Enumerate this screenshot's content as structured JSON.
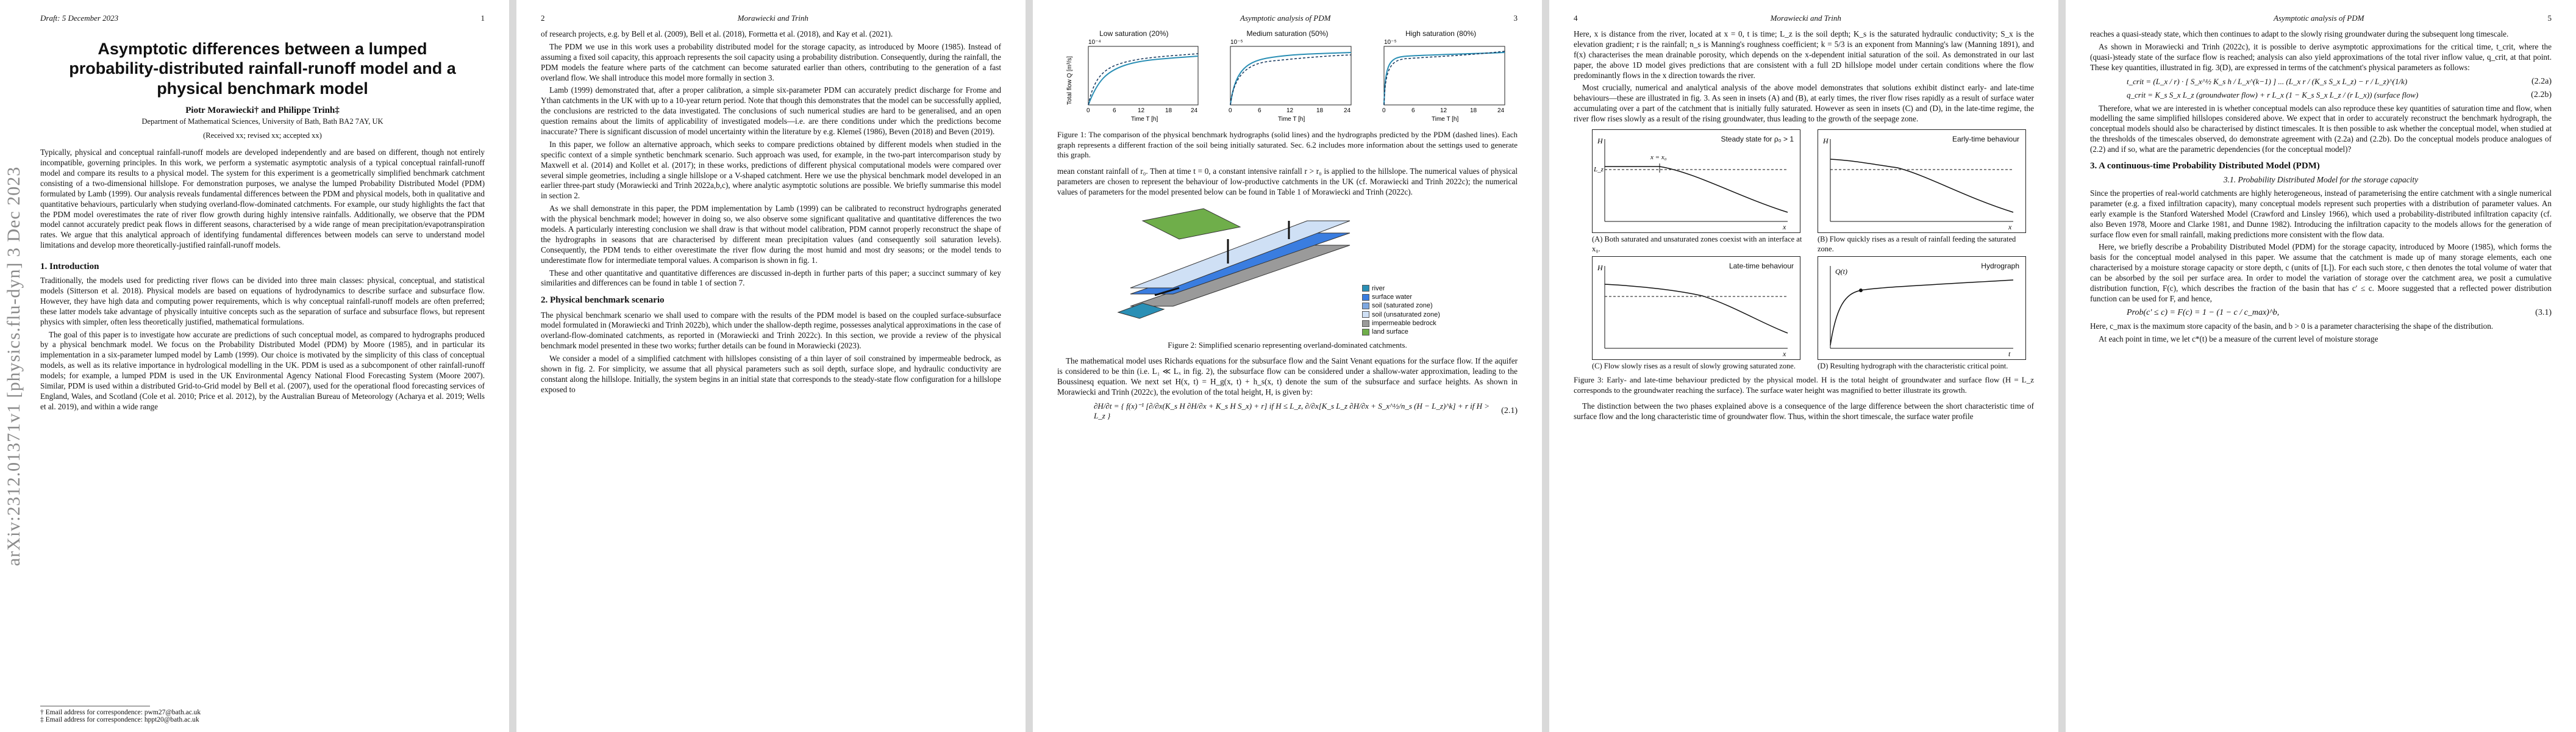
{
  "sidebar": {
    "arxiv_id": "arXiv:2312.01371v1  [physics.flu-dyn]  3 Dec 2023"
  },
  "page1": {
    "draft": "Draft: 5 December  2023",
    "num": "1",
    "title": "Asymptotic differences between a lumped probability-distributed rainfall-runoff model and a physical benchmark model",
    "authors": "Piotr Morawiecki† and Philippe Trinh‡",
    "affiliation": "Department of Mathematical Sciences, University of Bath, Bath BA2 7AY, UK",
    "received": "(Received xx; revised xx; accepted xx)",
    "abstract": "Typically, physical and conceptual rainfall-runoff models are developed independently and are based on different, though not entirely incompatible, governing principles. In this work, we perform a systematic asymptotic analysis of a typical conceptual rainfall-runoff model and compare its results to a physical model. The system for this experiment is a geometrically simplified benchmark catchment consisting of a two-dimensional hillslope. For demonstration purposes, we analyse the lumped Probability Distributed Model (PDM) formulated by Lamb (1999). Our analysis reveals fundamental differences between the PDM and physical models, both in qualitative and quantitative behaviours, particularly when studying overland-flow-dominated catchments. For example, our study highlights the fact that the PDM model overestimates the rate of river flow growth during highly intensive rainfalls. Additionally, we observe that the PDM model cannot accurately predict peak flows in different seasons, characterised by a wide range of mean precipitation/evapotranspiration rates. We argue that this analytical approach of identifying fundamental differences between models can serve to understand model limitations and develop more theoretically-justified rainfall-runoff models.",
    "sec1": "1.  Introduction",
    "intro1": "Traditionally, the models used for predicting river flows can be divided into three main classes: physical, conceptual, and statistical models (Sitterson et al. 2018). Physical models are based on equations of hydrodynamics to describe surface and subsurface flow. However, they have high data and computing power requirements, which is why conceptual rainfall-runoff models are often preferred; these latter models take advantage of physically intuitive concepts such as the separation of surface and subsurface flows, but represent physics with simpler, often less theoretically justified, mathematical formulations.",
    "intro2": "The goal of this paper is to investigate how accurate are predictions of such conceptual model, as compared to hydrographs produced by a physical benchmark model. We focus on the Probability Distributed Model (PDM) by Moore (1985), and in particular its implementation in a six-parameter lumped model by Lamb (1999). Our choice is motivated by the simplicity of this class of conceptual models, as well as its relative importance in hydrological modelling in the UK. PDM is used as a subcomponent of other rainfall-runoff models; for example, a lumped PDM is used in the UK Environmental Agency National Flood Forecasting System (Moore 2007). Similar, PDM is used within a distributed Grid-to-Grid model by Bell et al. (2007), used for the operational flood forecasting services of England, Wales, and Scotland (Cole et al. 2010; Price et al. 2012), by the Australian Bureau of Meteorology (Acharya et al. 2019; Wells et al. 2019), and within a wide range",
    "foot1": "† Email address for correspondence: pwm27@bath.ac.uk",
    "foot2": "‡ Email address for correspondence: hppt20@bath.ac.uk"
  },
  "page2": {
    "num": "2",
    "running": "Morawiecki and Trinh",
    "para1": "of research projects, e.g. by Bell et al. (2009), Bell et al. (2018), Formetta et al. (2018), and Kay et al. (2021).",
    "para2": "The PDM we use in this work uses a probability distributed model for the storage capacity, as introduced by Moore (1985). Instead of assuming a fixed soil capacity, this approach represents the soil capacity using a probability distribution. Consequently, during the rainfall, the PDM models the feature where parts of the catchment can become saturated earlier than others, contributing to the generation of a fast overland flow. We shall introduce this model more formally in section 3.",
    "para3": "Lamb (1999) demonstrated that, after a proper calibration, a simple six-parameter PDM can accurately predict discharge for Frome and Ythan catchments in the UK with up to a 10-year return period. Note that though this demonstrates that the model can be successfully applied, the conclusions are restricted to the data investigated. The conclusions of such numerical studies are hard to be generalised, and an open question remains about the limits of applicability of investigated models—i.e. are there conditions under which the predictions become inaccurate? There is significant discussion of model uncertainty within the literature by e.g. Klemeš (1986), Beven (2018) and Beven (2019).",
    "para4": "In this paper, we follow an alternative approach, which seeks to compare predictions obtained by different models when studied in the specific context of a simple synthetic benchmark scenario. Such approach was used, for example, in the two-part intercomparison study by Maxwell et al. (2014) and Kollet et al. (2017); in these works, predictions of different physical computational models were compared over several simple geometries, including a single hillslope or a V-shaped catchment. Here we use the physical benchmark model developed in an earlier three-part study (Morawiecki and Trinh 2022a,b,c), where analytic asymptotic solutions are possible. We briefly summarise this model in section 2.",
    "para5": "As we shall demonstrate in this paper, the PDM implementation by Lamb (1999) can be calibrated to reconstruct hydrographs generated with the physical benchmark model; however in doing so, we also observe some significant qualitative and quantitative differences the two models. A particularly interesting conclusion we shall draw is that without model calibration, PDM cannot properly reconstruct the shape of the hydrographs in seasons that are characterised by different mean precipitation values (and consequently soil saturation levels). Consequently, the PDM tends to either overestimate the river flow during the most humid and most dry seasons; or the model tends to underestimate flow for intermediate temporal values. A comparison is shown in fig. 1.",
    "para6": "These and other quantitative and quantitative differences are discussed in-depth in further parts of this paper; a succinct summary of key similarities and differences can be found in table 1 of section 7.",
    "sec2": "2.  Physical benchmark scenario",
    "para7": "The physical benchmark scenario we shall used to compare with the results of the PDM model is based on the coupled surface-subsurface model formulated in (Morawiecki and Trinh 2022b), which under the shallow-depth regime, possesses analytical approximations in the case of overland-flow-dominated catchments, as reported in (Morawiecki and Trinh 2022c). In this section, we provide a review of the physical benchmark model presented in these two works; further details can be found in Morawiecki (2023).",
    "para8": "We consider a model of a simplified catchment with hillslopes consisting of a thin layer of soil constrained by impermeable bedrock, as shown in fig. 2. For simplicity, we assume that all physical parameters such as soil depth, surface slope, and hydraulic conductivity are constant along the hillslope. Initially, the system begins in an initial state that corresponds to the steady-state flow configuration for a hillslope exposed to"
  },
  "page3": {
    "num": "3",
    "running": "Asymptotic analysis of PDM",
    "fig1": {
      "panel_titles": [
        "Low saturation (20%)",
        "Medium saturation (50%)",
        "High saturation (80%)"
      ],
      "scale_labels": [
        "10⁻⁴",
        "10⁻⁵",
        "10⁻⁵"
      ],
      "ylabel": "Total flow Q [m³/s]",
      "xlabel": "Time T [h]",
      "xticks": [
        "0",
        "6",
        "12",
        "18",
        "24"
      ],
      "caption": "Figure 1: The comparison of the physical benchmark hydrographs (solid lines) and the hydrographs predicted by the PDM (dashed lines). Each graph represents a different fraction of the soil being initially saturated. Sec. 6.2 includes more information about the settings used to generate this graph."
    },
    "para1": "mean constant rainfall of r₀. Then at time t = 0, a constant intensive rainfall r > r₀ is applied to the hillslope. The numerical values of physical parameters are chosen to represent the behaviour of low-productive catchments in the UK (cf. Morawiecki and Trinh 2022c); the numerical values of parameters for the model presented below can be found in Table 1 of Morawiecki and Trinh (2022c).",
    "fig2": {
      "legend": [
        "river",
        "surface water",
        "soil (saturated zone)",
        "soil (unsaturated zone)",
        "impermeable bedrock",
        "land surface"
      ],
      "caption": "Figure 2: Simplified scenario representing overland-dominated catchments."
    },
    "para2": "The mathematical model uses Richards equations for the subsurface flow and the Saint Venant equations for the surface flow. If the aquifer is considered to be thin (i.e. L₁ ≪ Lₓ in fig. 2), the subsurface flow can be considered under a shallow-water approximation, leading to the Boussinesq equation. We next set H(x, t) = H_g(x, t) + h_s(x, t) denote the sum of the subsurface and surface heights. As shown in Morawiecki and Trinh (2022c), the evolution of the total height, H, is given by:",
    "eq": "∂H/∂t = { f(x)⁻¹ [∂/∂x(K_s H ∂H/∂x + K_s H S_x) + r]   if H ≤ L_z,   ∂/∂x[K_s L_z ∂H/∂x + S_x^½/n_s (H − L_z)^k] + r   if H > L_z }",
    "eqnum": "(2.1)"
  },
  "page4": {
    "num": "4",
    "running": "Morawiecki and Trinh",
    "para1": "Here, x is distance from the river, located at x = 0, t is time; L_z is the soil depth; K_s is the saturated hydraulic conductivity; S_x is the elevation gradient; r is the rainfall; n_s is Manning's roughness coefficient; k = 5/3 is an exponent from Manning's law (Manning 1891), and f(x) characterises the mean drainable porosity, which depends on the x-dependent initial saturation of the soil. As demonstrated in our last paper, the above 1D model gives predictions that are consistent with a full 2D hillslope model under certain conditions where the flow predominantly flows in the x direction towards the river.",
    "para2": "Most crucially, numerical and analytical analysis of the above model demonstrates that solutions exhibit distinct early- and late-time behaviours—these are illustrated in fig. 3. As seen in insets (A) and (B), at early times, the river flow rises rapidly as a result of surface water accumulating over a part of the catchment that is initially fully saturated. However as seen in insets (C) and (D), in the late-time regime, the river flow rises slowly as a result of the rising groundwater, thus leading to the growth of the seepage zone.",
    "fig3": {
      "titles": [
        "Steady state for ρ₀ > 1",
        "Early-time behaviour",
        "Late-time behaviour",
        "Hydrograph"
      ],
      "caps": [
        "(A) Both saturated and unsaturated zones coexist with an interface at x₀.",
        "(B) Flow quickly rises as a result of rainfall feeding the saturated zone.",
        "(C) Flow slowly rises as a result of slowly growing saturated zone.",
        "(D) Resulting hydrograph with the characteristic critical point."
      ],
      "axis_h": "H",
      "axis_x": "x",
      "axis_t": "t",
      "axis_q": "Q(t)",
      "lz": "L_z",
      "x0": "x = x₀",
      "caption": "Figure 3: Early- and late-time behaviour predicted by the physical model. H is the total height of groundwater and surface flow (H = L_z corresponds to the groundwater reaching the surface). The surface water height was magnified to better illustrate its growth."
    },
    "para3": "The distinction between the two phases explained above is a consequence of the large difference between the short characteristic time of surface flow and the long characteristic time of groundwater flow. Thus, within the short timescale, the surface water profile"
  },
  "page5": {
    "num": "5",
    "running": "Asymptotic analysis of PDM",
    "para1": "reaches a quasi-steady state, which then continues to adapt to the slowly rising groundwater during the subsequent long timescale.",
    "para2": "As shown in Morawiecki and Trinh (2022c), it is possible to derive asymptotic approximations for the critical time, t_crit, where the (quasi-)steady state of the surface flow is reached; analysis can also yield approximations of the total river inflow value, q_crit, at that point. These key quantities, illustrated in fig. 3(D), are expressed in terms of the catchment's physical parameters as follows:",
    "eq1": "t_crit = (L_x / r) · [ S_x^½ K_s h / L_x^(k−1) ] ... (L_x r / (K_s S_x L_z) − r / L_z)^(1/k)",
    "eq1num": "(2.2a)",
    "eq2": "q_crit = K_s S_x L_z  (groundwater flow)  + r L_x (1 − K_s S_x L_z / (r L_x))  (surface flow)",
    "eq2num": "(2.2b)",
    "para3": "Therefore, what we are interested in is whether conceptual models can also reproduce these key quantities of saturation time and flow, when modelling the same simplified hillslopes considered above. We expect that in order to accurately reconstruct the benchmark hydrograph, the conceptual models should also be characterised by distinct timescales. It is then possible to ask whether the conceptual model, when studied at the thresholds of the timescales observed, do demonstrate agreement with (2.2a) and (2.2b). Do the conceptual models produce analogues of (2.2) and if so, what are the parametric dependencies (for the conceptual model)?",
    "sec3": "3.  A continuous-time Probability Distributed Model (PDM)",
    "sub31": "3.1. Probability Distributed Model for the storage capacity",
    "para4": "Since the properties of real-world catchments are highly heterogeneous, instead of parameterising the entire catchment with a single numerical parameter (e.g. a fixed infiltration capacity), many conceptual models represent such properties with a distribution of parameter values. An early example is the Stanford Watershed Model (Crawford and Linsley 1966), which used a probability-distributed infiltration capacity (cf. also Beven 1978, Moore and Clarke 1981, and Dunne 1982). Introducing the infiltration capacity to the models allows for the generation of surface flow even for small rainfall, making predictions more consistent with the flow data.",
    "para5": "Here, we briefly describe a Probability Distributed Model (PDM) for the storage capacity, introduced by Moore (1985), which forms the basis for the conceptual model analysed in this paper. We assume that the catchment is made up of many storage elements, each one characterised by a moisture storage capacity or store depth, c (units of [L]). For each such store, c then denotes the total volume of water that can be absorbed by the soil per surface area. In order to model the variation of storage over the catchment area, we posit a cumulative distribution function, F(c), which describes the fraction of the basin that has c′ ≤ c. Moore suggested that a reflected power distribution function can be used for F, and hence,",
    "eq3": "Prob(c′ ≤ c) = F(c) = 1 − (1 − c / c_max)^b,",
    "eq3num": "(3.1)",
    "para6": "Here, c_max is the maximum store capacity of the basin, and b > 0 is a parameter characterising the shape of the distribution.",
    "para7": "At each point in time, we let c*(t) be a measure of the current level of moisture storage"
  },
  "colors": {
    "curve": "#2a8fb5",
    "dashed": "#12345a",
    "water": "#3a7de0",
    "land": "#6fae4a",
    "bedrock": "#9a9a9a",
    "link": "#2b5fa3"
  }
}
